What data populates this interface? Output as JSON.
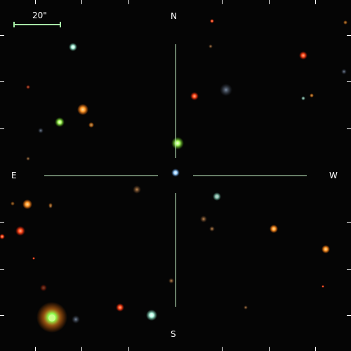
{
  "compass": {
    "north": "N",
    "south": "S",
    "east": "E",
    "west": "W"
  },
  "scale_bar": {
    "label": "20\""
  },
  "colors": {
    "background": "#050505",
    "crosshair": "#c8f5c8",
    "scale_bar": "#a6f0a6",
    "ticks": "#ffffff",
    "text": "#ffffff"
  },
  "objects": [
    {
      "name": "bright-star-green",
      "color": "#9cff6a"
    },
    {
      "name": "star-orange",
      "color": "#ff9a3c"
    },
    {
      "name": "star-red",
      "color": "#ff4a2a"
    },
    {
      "name": "star-cyan",
      "color": "#c8fff0"
    },
    {
      "name": "galaxy-faint",
      "color": "#b8864a"
    },
    {
      "name": "central-object",
      "color": "#bfe3ff"
    }
  ]
}
